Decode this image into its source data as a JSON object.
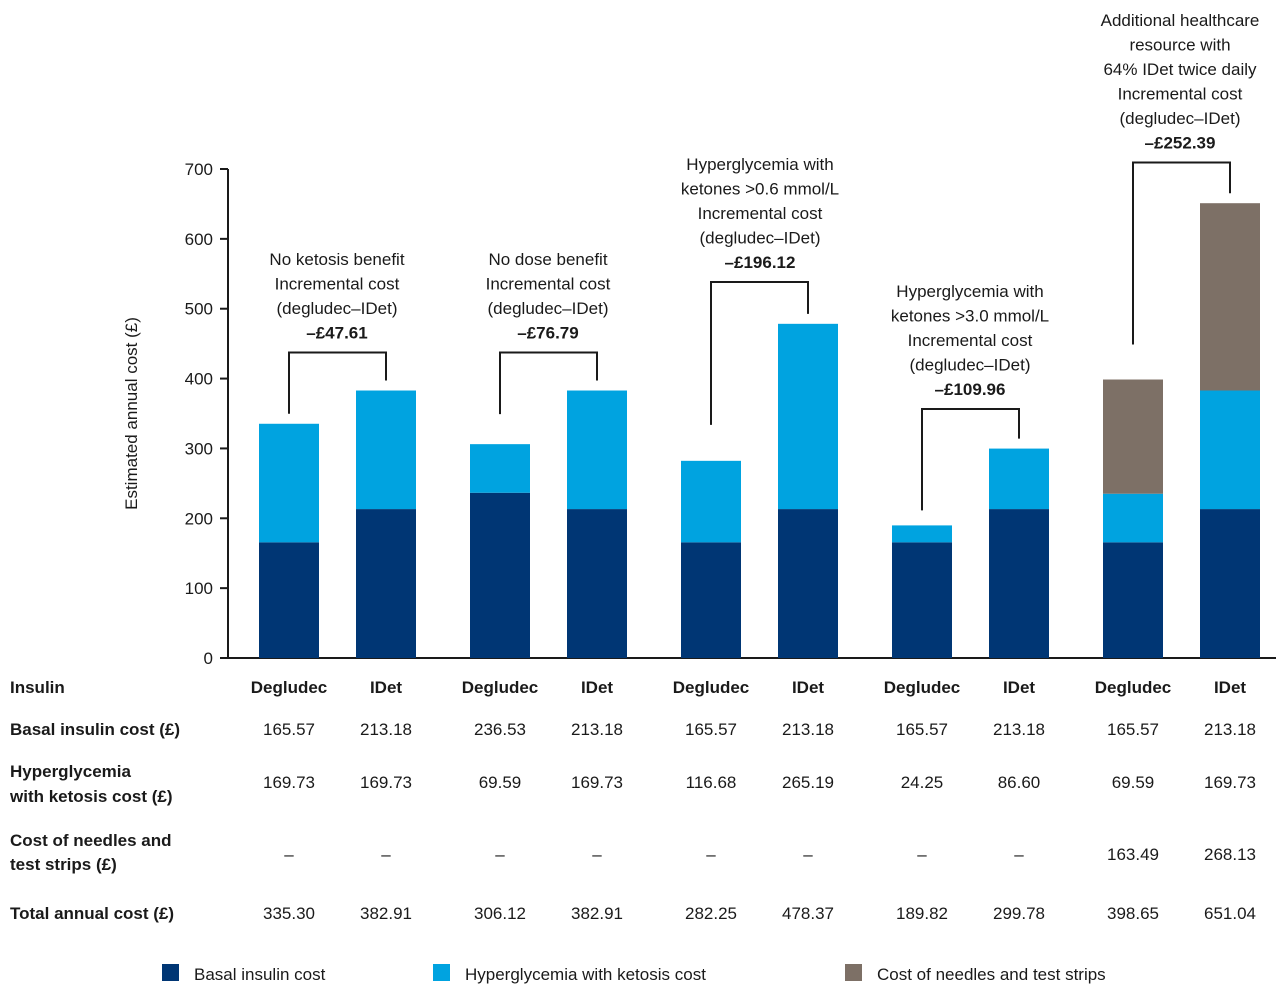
{
  "chart_data": {
    "type": "bar",
    "stacked": true,
    "ylabel": "Estimated annual cost (£)",
    "ylim": [
      0,
      700
    ],
    "yticks": [
      0,
      100,
      200,
      300,
      400,
      500,
      600,
      700
    ],
    "categories": [
      "Degludec",
      "IDet",
      "Degludec",
      "IDet",
      "Degludec",
      "IDet",
      "Degludec",
      "IDet",
      "Degludec",
      "IDet"
    ],
    "series": [
      {
        "name": "Basal insulin cost",
        "color": "#003674",
        "values": [
          165.57,
          213.18,
          236.53,
          213.18,
          165.57,
          213.18,
          165.57,
          213.18,
          165.57,
          213.18
        ]
      },
      {
        "name": "Hyperglycemia with ketosis cost",
        "color": "#00a3e0",
        "values": [
          169.73,
          169.73,
          69.59,
          169.73,
          116.68,
          265.19,
          24.25,
          86.6,
          69.59,
          169.73
        ]
      },
      {
        "name": "Cost of needles and test strips",
        "color": "#7d7066",
        "values": [
          0,
          0,
          0,
          0,
          0,
          0,
          0,
          0,
          163.49,
          268.13
        ]
      }
    ],
    "scenarios": [
      {
        "lines": [
          "No ketosis benefit",
          "Incremental cost",
          "(degludec–IDet)"
        ],
        "value": "–£47.61"
      },
      {
        "lines": [
          "No dose benefit",
          "Incremental cost",
          "(degludec–IDet)"
        ],
        "value": "–£76.79"
      },
      {
        "lines": [
          "Hyperglycemia with",
          "ketones >0.6 mmol/L",
          "Incremental cost",
          "(degludec–IDet)"
        ],
        "value": "–£196.12"
      },
      {
        "lines": [
          "Hyperglycemia with",
          "ketones >3.0 mmol/L",
          "Incremental cost",
          "(degludec–IDet)"
        ],
        "value": "–£109.96"
      },
      {
        "lines": [
          "Additional healthcare",
          "resource with",
          "64% IDet twice daily",
          "Incremental cost",
          "(degludec–IDet)"
        ],
        "value": "–£252.39"
      }
    ],
    "table": {
      "header_label": "Insulin",
      "columns": [
        "Degludec",
        "IDet",
        "Degludec",
        "IDet",
        "Degludec",
        "IDet",
        "Degludec",
        "IDet",
        "Degludec",
        "IDet"
      ],
      "rows": [
        {
          "label": [
            "Basal insulin cost (£)"
          ],
          "values": [
            "165.57",
            "213.18",
            "236.53",
            "213.18",
            "165.57",
            "213.18",
            "165.57",
            "213.18",
            "165.57",
            "213.18"
          ]
        },
        {
          "label": [
            "Hyperglycemia",
            "with ketosis cost (£)"
          ],
          "values": [
            "169.73",
            "169.73",
            "69.59",
            "169.73",
            "116.68",
            "265.19",
            "24.25",
            "86.60",
            "69.59",
            "169.73"
          ]
        },
        {
          "label": [
            "Cost of needles and",
            "test strips (£)"
          ],
          "values": [
            "–",
            "–",
            "–",
            "–",
            "–",
            "–",
            "–",
            "–",
            "163.49",
            "268.13"
          ]
        },
        {
          "label": [
            "Total annual cost (£)"
          ],
          "values": [
            "335.30",
            "382.91",
            "306.12",
            "382.91",
            "282.25",
            "478.37",
            "189.82",
            "299.78",
            "398.65",
            "651.04"
          ]
        }
      ]
    },
    "legend": [
      {
        "label": "Basal insulin cost",
        "color": "#003674"
      },
      {
        "label": "Hyperglycemia with ketosis cost",
        "color": "#00a3e0"
      },
      {
        "label": "Cost of needles and test strips",
        "color": "#7d7066"
      }
    ]
  }
}
